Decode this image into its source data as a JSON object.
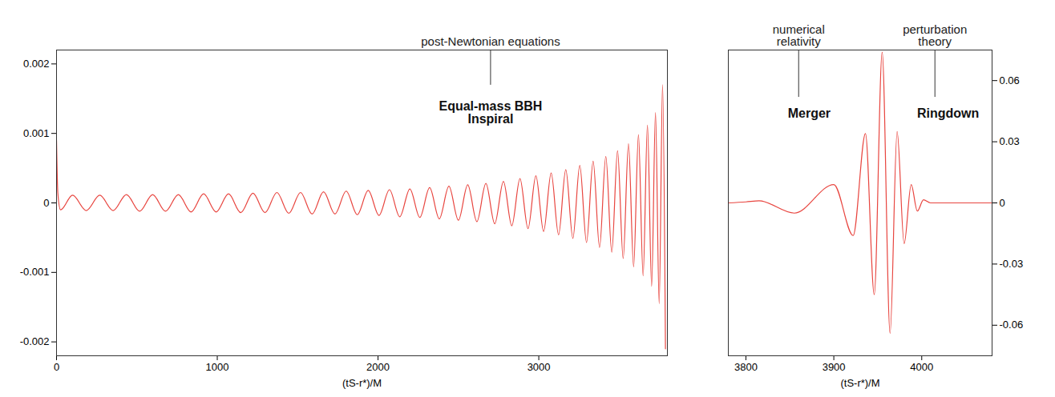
{
  "chart_data": [
    {
      "type": "line",
      "x_label": "(tS-r*)/M",
      "xlim": [
        0,
        3800
      ],
      "xticks": [
        0,
        1000,
        2000,
        3000
      ],
      "ylim": [
        -0.0022,
        0.0022
      ],
      "yticks": [
        -0.002,
        -0.001,
        0,
        0.001,
        0.002
      ],
      "color": "#e8453f",
      "x": [
        0,
        8,
        25,
        100,
        185,
        269,
        352,
        435,
        517,
        598,
        678,
        758,
        837,
        915,
        993,
        1070,
        1146,
        1222,
        1297,
        1371,
        1445,
        1518,
        1590,
        1661,
        1732,
        1802,
        1871,
        1939,
        2006,
        2071,
        2135,
        2198,
        2260,
        2321,
        2381,
        2441,
        2500,
        2558,
        2615,
        2671,
        2726,
        2780,
        2832,
        2883,
        2933,
        2982,
        3030,
        3077,
        3123,
        3168,
        3212,
        3255,
        3297,
        3338,
        3378,
        3417,
        3454,
        3490,
        3525,
        3558,
        3590,
        3620,
        3649,
        3676,
        3702,
        3726,
        3749,
        3770,
        3788
      ],
      "values": [
        0.0009,
        0.00015,
        -0.0001,
        0.00011,
        -0.00011,
        0.00011,
        -0.00011,
        0.00012,
        -0.00012,
        0.00012,
        -0.00012,
        0.00012,
        -0.00013,
        0.00013,
        -0.00013,
        0.00013,
        -0.00014,
        0.00014,
        -0.00014,
        0.00015,
        -0.00015,
        0.00015,
        -0.00016,
        0.00016,
        -0.00016,
        0.00017,
        -0.00017,
        0.00018,
        -0.00018,
        0.00019,
        -0.0002,
        0.0002,
        -0.00021,
        0.00022,
        -0.00023,
        0.00024,
        -0.00025,
        0.00026,
        -0.00027,
        0.00028,
        -0.0003,
        0.00031,
        -0.00033,
        0.00035,
        -0.00037,
        0.00039,
        -0.00041,
        0.00043,
        -0.00046,
        0.00048,
        -0.00051,
        0.00054,
        -0.00057,
        0.0006,
        -0.00064,
        0.00067,
        -0.00071,
        0.00075,
        -0.0008,
        0.00085,
        -0.00092,
        0.00098,
        -0.00105,
        0.00112,
        -0.0012,
        0.0013,
        -0.00145,
        0.0017,
        -0.0021
      ],
      "annotations": [
        {
          "text": "Equal-mass BBH\nInspiral",
          "x": 2700,
          "y": 0.0013
        }
      ],
      "callouts": [
        {
          "text": "post-Newtonian equations",
          "x": 2700,
          "y": 0.0017
        }
      ]
    },
    {
      "type": "line",
      "x_label": "(tS-r*)/M",
      "xlim": [
        3780,
        4080
      ],
      "xticks": [
        3800,
        3900,
        4000
      ],
      "ylim": [
        -0.075,
        0.075
      ],
      "yticks": [
        -0.06,
        -0.03,
        0,
        0.03,
        0.06
      ],
      "color": "#e8453f",
      "x": [
        3780,
        3800,
        3815,
        3855,
        3900,
        3922,
        3936,
        3946,
        3955,
        3964,
        3972,
        3980,
        3988,
        3995,
        4002,
        4010,
        4080
      ],
      "values": [
        0,
        0.0005,
        0.001,
        -0.005,
        0.009,
        -0.016,
        0.034,
        -0.045,
        0.074,
        -0.064,
        0.035,
        -0.02,
        0.009,
        -0.004,
        0.0015,
        0,
        0
      ],
      "annotations": [
        {
          "text": "Merger",
          "x": 3872,
          "y": 0.044
        },
        {
          "text": "Ringdown",
          "x": 4030,
          "y": 0.044
        }
      ],
      "callouts": [
        {
          "text": "numerical\nrelativity",
          "x": 3860,
          "y": 0.052
        },
        {
          "text": "perturbation\ntheory",
          "x": 4015,
          "y": 0.052
        }
      ]
    }
  ]
}
